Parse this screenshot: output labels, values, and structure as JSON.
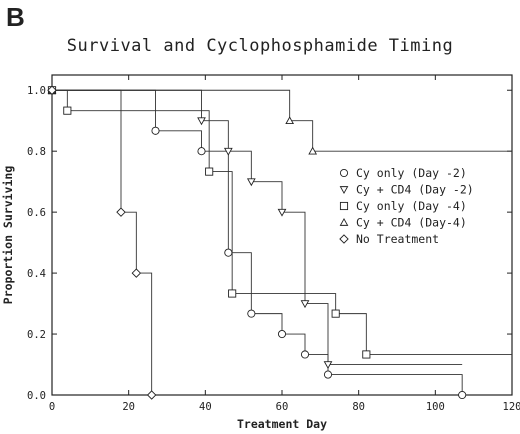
{
  "panel_label": "B",
  "chart_data": {
    "type": "line",
    "step": true,
    "title": "Survival and Cyclophosphamide Timing",
    "xlabel": "Treatment Day",
    "ylabel": "Proportion Surviving",
    "xlim": [
      0,
      120
    ],
    "ylim": [
      0,
      1.05
    ],
    "xticks": [
      0,
      20,
      40,
      60,
      80,
      100,
      120
    ],
    "yticks": [
      "0.0",
      "0.2",
      "0.4",
      "0.6",
      "0.8",
      "1.0"
    ],
    "grid": false,
    "legend_position": "right",
    "series": [
      {
        "name": "Cy only (Day -2)",
        "marker": "circle",
        "points": [
          [
            0,
            1.0
          ],
          [
            27,
            0.867
          ],
          [
            39,
            0.8
          ],
          [
            46,
            0.467
          ],
          [
            52,
            0.267
          ],
          [
            60,
            0.2
          ],
          [
            66,
            0.133
          ],
          [
            72,
            0.067
          ],
          [
            107,
            0.0
          ]
        ],
        "end_x": 107
      },
      {
        "name": "Cy + CD4 (Day -2)",
        "marker": "triangle-down",
        "points": [
          [
            0,
            1.0
          ],
          [
            39,
            0.9
          ],
          [
            46,
            0.8
          ],
          [
            52,
            0.7
          ],
          [
            60,
            0.6
          ],
          [
            66,
            0.3
          ],
          [
            72,
            0.1
          ]
        ],
        "end_x": 107
      },
      {
        "name": "Cy only (Day -4)",
        "marker": "square",
        "points": [
          [
            0,
            1.0
          ],
          [
            4,
            0.933
          ],
          [
            41,
            0.733
          ],
          [
            47,
            0.333
          ],
          [
            74,
            0.267
          ],
          [
            82,
            0.133
          ]
        ],
        "end_x": 120
      },
      {
        "name": "Cy + CD4 (Day-4)",
        "marker": "triangle-up",
        "points": [
          [
            0,
            1.0
          ],
          [
            62,
            0.9
          ],
          [
            68,
            0.8
          ]
        ],
        "end_x": 120
      },
      {
        "name": "No Treatment",
        "marker": "diamond",
        "points": [
          [
            0,
            1.0
          ],
          [
            18,
            0.6
          ],
          [
            22,
            0.4
          ],
          [
            26,
            0.0
          ]
        ],
        "end_x": 26
      }
    ]
  }
}
